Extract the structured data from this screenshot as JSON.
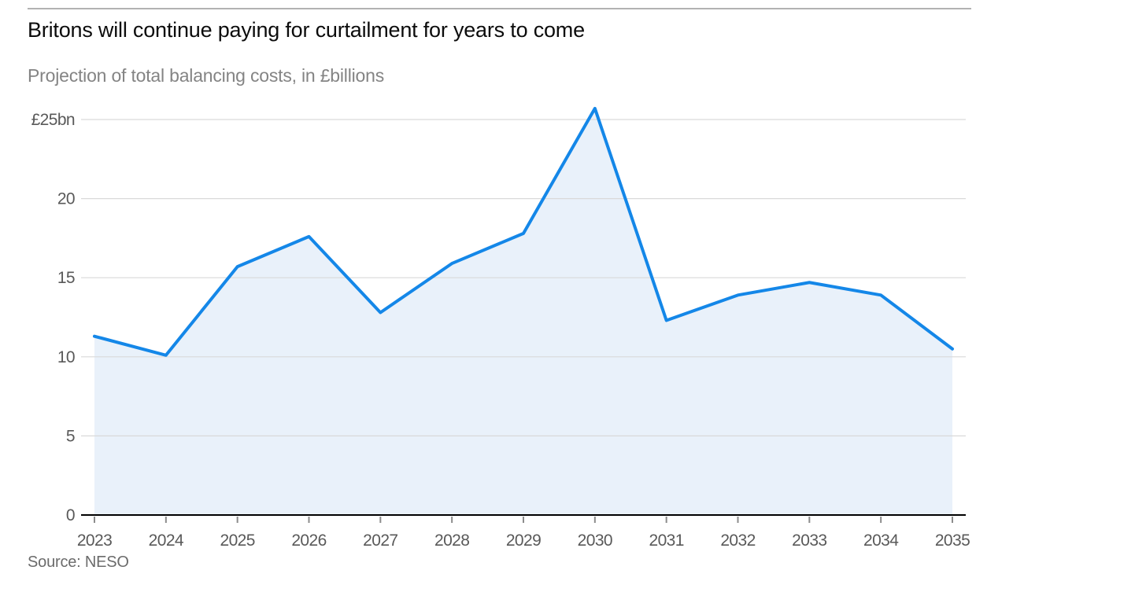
{
  "chart_data": {
    "type": "area",
    "title": "Britons will continue paying for curtailment for years to come",
    "subtitle": "Projection of total balancing costs, in £billions",
    "source": "Source: NESO",
    "x": [
      "2023",
      "2024",
      "2025",
      "2026",
      "2027",
      "2028",
      "2029",
      "2030",
      "2031",
      "2032",
      "2033",
      "2034",
      "2035"
    ],
    "values": [
      11.3,
      10.1,
      15.7,
      17.6,
      12.8,
      15.9,
      17.8,
      25.7,
      12.3,
      13.9,
      14.7,
      13.9,
      10.5
    ],
    "series_name": "Total balancing costs (£bn)",
    "xlabel": "",
    "ylabel": "£billions",
    "ylim": [
      0,
      25
    ],
    "yticks": [
      0,
      5,
      10,
      15,
      20,
      25
    ],
    "ytick_labels": [
      "0",
      "5",
      "10",
      "15",
      "20",
      "£25bn"
    ],
    "grid": "horizontal",
    "legend": "none",
    "colors": {
      "line": "#1487e8",
      "fill": "#e9f1fa",
      "grid": "#d9d9d9",
      "axis": "#000000",
      "tick": "#8c8c8c",
      "tick_label": "#595959",
      "title": "#0c0c0c",
      "subtitle": "#848484",
      "source": "#6b6b6b",
      "top_rule": "#b2b2b2"
    }
  }
}
